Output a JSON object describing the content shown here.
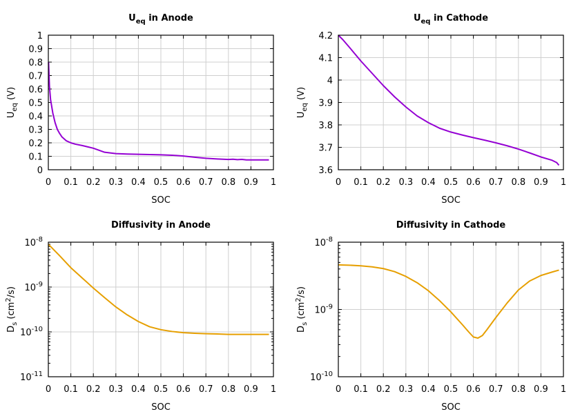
{
  "chart_data": [
    {
      "type": "line",
      "title": "U",
      "title_sub": "eq",
      "title_suffix": " in Anode",
      "xlabel": "SOC",
      "ylabel": "U",
      "ylabel_sub": "eq",
      "ylabel_suffix": " (V)",
      "xlim": [
        0,
        1
      ],
      "ylim": [
        0,
        1
      ],
      "xscale": "linear",
      "yscale": "linear",
      "grid": true,
      "xticks": [
        0,
        0.1,
        0.2,
        0.3,
        0.4,
        0.5,
        0.6,
        0.7,
        0.8,
        0.9,
        1
      ],
      "xtick_labels": [
        "0",
        "0.1",
        "0.2",
        "0.3",
        "0.4",
        "0.5",
        "0.6",
        "0.7",
        "0.8",
        "0.9",
        "1"
      ],
      "yticks": [
        0,
        0.1,
        0.2,
        0.3,
        0.4,
        0.5,
        0.6,
        0.7,
        0.8,
        0.9,
        1
      ],
      "ytick_labels": [
        "0",
        "0.1",
        "0.2",
        "0.3",
        "0.4",
        "0.5",
        "0.6",
        "0.7",
        "0.8",
        "0.9",
        "1"
      ],
      "color": "#9400d3",
      "x": [
        0.001,
        0.005,
        0.01,
        0.02,
        0.03,
        0.04,
        0.05,
        0.06,
        0.08,
        0.1,
        0.12,
        0.15,
        0.2,
        0.25,
        0.3,
        0.35,
        0.4,
        0.45,
        0.5,
        0.55,
        0.6,
        0.65,
        0.7,
        0.75,
        0.8,
        0.82,
        0.84,
        0.86,
        0.88,
        0.9,
        0.95,
        0.98
      ],
      "y": [
        0.8,
        0.62,
        0.52,
        0.42,
        0.35,
        0.3,
        0.27,
        0.245,
        0.215,
        0.2,
        0.19,
        0.18,
        0.16,
        0.13,
        0.12,
        0.117,
        0.115,
        0.113,
        0.111,
        0.108,
        0.102,
        0.093,
        0.085,
        0.08,
        0.076,
        0.078,
        0.075,
        0.077,
        0.073,
        0.073,
        0.073,
        0.073
      ]
    },
    {
      "type": "line",
      "title": "U",
      "title_sub": "eq",
      "title_suffix": " in Cathode",
      "xlabel": "SOC",
      "ylabel": "U",
      "ylabel_sub": "eq",
      "ylabel_suffix": " (V)",
      "xlim": [
        0,
        1
      ],
      "ylim": [
        3.6,
        4.2
      ],
      "xscale": "linear",
      "yscale": "linear",
      "grid": true,
      "xticks": [
        0,
        0.1,
        0.2,
        0.3,
        0.4,
        0.5,
        0.6,
        0.7,
        0.8,
        0.9,
        1
      ],
      "xtick_labels": [
        "0",
        "0.1",
        "0.2",
        "0.3",
        "0.4",
        "0.5",
        "0.6",
        "0.7",
        "0.8",
        "0.9",
        "1"
      ],
      "yticks": [
        3.6,
        3.7,
        3.8,
        3.9,
        4.0,
        4.1,
        4.2
      ],
      "ytick_labels": [
        "3.6",
        "3.7",
        "3.8",
        "3.9",
        "4",
        "4.1",
        "4.2"
      ],
      "color": "#9400d3",
      "x": [
        0.0,
        0.02,
        0.05,
        0.1,
        0.15,
        0.2,
        0.25,
        0.3,
        0.35,
        0.4,
        0.45,
        0.5,
        0.55,
        0.6,
        0.65,
        0.7,
        0.75,
        0.8,
        0.85,
        0.9,
        0.95,
        0.97,
        0.98
      ],
      "y": [
        4.2,
        4.18,
        4.145,
        4.085,
        4.03,
        3.975,
        3.925,
        3.88,
        3.84,
        3.81,
        3.785,
        3.768,
        3.755,
        3.743,
        3.732,
        3.72,
        3.707,
        3.692,
        3.675,
        3.657,
        3.642,
        3.632,
        3.62
      ]
    },
    {
      "type": "line",
      "title": "Diffusivity in Anode",
      "xlabel": "SOC",
      "ylabel": "D",
      "ylabel_sub": "s",
      "ylabel_suffix": " (cm",
      "ylabel_sup": "2",
      "ylabel_end": "/s)",
      "xlim": [
        0,
        1
      ],
      "ylim": [
        1e-11,
        1e-08
      ],
      "xscale": "linear",
      "yscale": "log",
      "grid": true,
      "xticks": [
        0,
        0.1,
        0.2,
        0.3,
        0.4,
        0.5,
        0.6,
        0.7,
        0.8,
        0.9,
        1
      ],
      "xtick_labels": [
        "0",
        "0.1",
        "0.2",
        "0.3",
        "0.4",
        "0.5",
        "0.6",
        "0.7",
        "0.8",
        "0.9",
        "1"
      ],
      "yticks": [
        1e-11,
        1e-10,
        1e-09,
        1e-08
      ],
      "ytick_base": [
        "10",
        "10",
        "10",
        "10"
      ],
      "ytick_exp": [
        "-11",
        "-10",
        "-9",
        "-8"
      ],
      "color": "#e69f00",
      "x": [
        0.0,
        0.05,
        0.1,
        0.15,
        0.2,
        0.25,
        0.3,
        0.35,
        0.4,
        0.45,
        0.5,
        0.55,
        0.6,
        0.65,
        0.7,
        0.75,
        0.8,
        0.85,
        0.9,
        0.95,
        0.98
      ],
      "y": [
        9e-09,
        5e-09,
        2.7e-09,
        1.6e-09,
        9.5e-10,
        5.8e-10,
        3.6e-10,
        2.4e-10,
        1.7e-10,
        1.3e-10,
        1.12e-10,
        1.02e-10,
        9.6e-11,
        9.3e-11,
        9.1e-11,
        9e-11,
        8.8e-11,
        8.8e-11,
        8.8e-11,
        8.8e-11,
        8.8e-11
      ]
    },
    {
      "type": "line",
      "title": "Diffusivity in Cathode",
      "xlabel": "SOC",
      "ylabel": "D",
      "ylabel_sub": "s",
      "ylabel_suffix": " (cm",
      "ylabel_sup": "2",
      "ylabel_end": "/s)",
      "xlim": [
        0,
        1
      ],
      "ylim": [
        1e-10,
        1e-08
      ],
      "xscale": "linear",
      "yscale": "log",
      "grid": true,
      "xticks": [
        0,
        0.1,
        0.2,
        0.3,
        0.4,
        0.5,
        0.6,
        0.7,
        0.8,
        0.9,
        1
      ],
      "xtick_labels": [
        "0",
        "0.1",
        "0.2",
        "0.3",
        "0.4",
        "0.5",
        "0.6",
        "0.7",
        "0.8",
        "0.9",
        "1"
      ],
      "yticks": [
        1e-10,
        1e-09,
        1e-08
      ],
      "ytick_base": [
        "10",
        "10",
        "10"
      ],
      "ytick_exp": [
        "-10",
        "-9",
        "-8"
      ],
      "color": "#e69f00",
      "x": [
        0.0,
        0.05,
        0.1,
        0.15,
        0.2,
        0.25,
        0.3,
        0.35,
        0.4,
        0.45,
        0.5,
        0.55,
        0.58,
        0.6,
        0.62,
        0.64,
        0.66,
        0.7,
        0.75,
        0.8,
        0.85,
        0.9,
        0.95,
        0.98
      ],
      "y": [
        4.6e-09,
        4.55e-09,
        4.45e-09,
        4.3e-09,
        4.05e-09,
        3.65e-09,
        3.1e-09,
        2.5e-09,
        1.9e-09,
        1.35e-09,
        9.2e-10,
        6e-10,
        4.6e-10,
        3.9e-10,
        3.75e-10,
        4.1e-10,
        5e-10,
        7.6e-10,
        1.25e-09,
        1.95e-09,
        2.65e-09,
        3.2e-09,
        3.6e-09,
        3.85e-09
      ]
    }
  ]
}
